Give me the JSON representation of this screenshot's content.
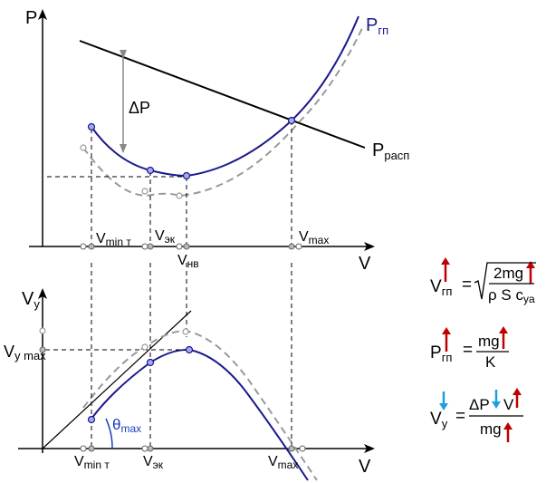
{
  "top_plot": {
    "y_axis_label": "P",
    "x_axis_label": "V",
    "curve_label_main": "P",
    "curve_label_main_sub": "гп",
    "line_label": "P",
    "line_label_sub": "расп",
    "delta_label": "ΔP",
    "tick_labels": {
      "vmin_main": "V",
      "vmin_sub": "min т",
      "vek_main": "V",
      "vek_sub": "эк",
      "vnv_main": "V",
      "vnv_sub": "нв",
      "vmax_main": "V",
      "vmax_sub": "max"
    }
  },
  "bottom_plot": {
    "y_axis_main": "V",
    "y_axis_sub": "y",
    "x_axis_label": "V",
    "vy_max_main": "V",
    "vy_max_sub": "y max",
    "theta_main": "θ",
    "theta_sub": "max",
    "tick_labels": {
      "vmin_main": "V",
      "vmin_sub": "min т",
      "vek_main": "V",
      "vek_sub": "эк",
      "vmax_main": "V",
      "vmax_sub": "max"
    }
  },
  "formulas": {
    "f1": {
      "lhs": "V",
      "lhs_sub": "гп",
      "eq": "=",
      "num": "2mg",
      "den": "ρ S c",
      "den_sub": "ya"
    },
    "f2": {
      "lhs": "P",
      "lhs_sub": "гп",
      "eq": "=",
      "num": "mg",
      "den": "K"
    },
    "f3": {
      "lhs": "V",
      "lhs_sub": "y",
      "eq": "=",
      "num_a": "ΔP",
      "num_b": "V",
      "den": "mg"
    }
  },
  "colors": {
    "curve_main": "#1a1a8c",
    "curve_dashed": "#999999",
    "line": "#000000",
    "arrow_up": "#c00000",
    "arrow_down": "#1e9fe0",
    "theta": "#1a3fbf",
    "point_fill": "#a8aaf0"
  }
}
